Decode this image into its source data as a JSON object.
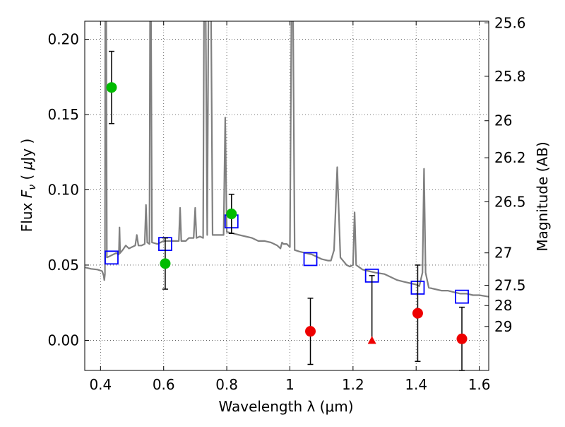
{
  "chart_data": {
    "type": "scatter",
    "xlabel": "Wavelength  λ (μm)",
    "ylabel_left": [
      "Flux ",
      "F",
      "ν",
      " ( ",
      "μ",
      "Jy )"
    ],
    "ylabel_right": "Magnitude (AB)",
    "xlim": [
      0.35,
      1.63
    ],
    "ylim": [
      -0.02,
      0.212
    ],
    "grid": true,
    "x_ticks": [
      0.4,
      0.6,
      0.8,
      1.0,
      1.2,
      1.4,
      1.6
    ],
    "x_tick_labels": [
      "0.4",
      "0.6",
      "0.8",
      "1",
      "1.2",
      "1.4",
      "1.6"
    ],
    "y_ticks": [
      0.0,
      0.05,
      0.1,
      0.15,
      0.2
    ],
    "y_tick_labels": [
      "0.00",
      "0.05",
      "0.10",
      "0.15",
      "0.20"
    ],
    "mag_ticks": [
      {
        "label": "25.6",
        "flux": 0.2109
      },
      {
        "label": "25.8",
        "flux": 0.1754
      },
      {
        "label": "26",
        "flux": 0.1459
      },
      {
        "label": "26.2",
        "flux": 0.1213
      },
      {
        "label": "26.5",
        "flux": 0.092
      },
      {
        "label": "27",
        "flux": 0.0581
      },
      {
        "label": "27.5",
        "flux": 0.0366
      },
      {
        "label": "28",
        "flux": 0.0231
      },
      {
        "label": "29",
        "flux": 0.0092
      }
    ],
    "series": [
      {
        "type": "line",
        "color": "#808080",
        "points": [
          [
            0.35,
            0.0485
          ],
          [
            0.37,
            0.0475
          ],
          [
            0.39,
            0.047
          ],
          [
            0.405,
            0.046
          ],
          [
            0.41,
            0.043
          ],
          [
            0.412,
            0.04
          ],
          [
            0.414,
            0.044
          ],
          [
            0.415,
            0.22
          ],
          [
            0.418,
            0.22
          ],
          [
            0.42,
            0.055
          ],
          [
            0.43,
            0.056
          ],
          [
            0.44,
            0.057
          ],
          [
            0.45,
            0.058
          ],
          [
            0.458,
            0.057
          ],
          [
            0.46,
            0.075
          ],
          [
            0.462,
            0.058
          ],
          [
            0.47,
            0.06
          ],
          [
            0.48,
            0.063
          ],
          [
            0.49,
            0.061
          ],
          [
            0.5,
            0.062
          ],
          [
            0.51,
            0.063
          ],
          [
            0.515,
            0.07
          ],
          [
            0.52,
            0.063
          ],
          [
            0.53,
            0.063
          ],
          [
            0.54,
            0.064
          ],
          [
            0.544,
            0.09
          ],
          [
            0.548,
            0.065
          ],
          [
            0.555,
            0.064
          ],
          [
            0.557,
            0.22
          ],
          [
            0.56,
            0.22
          ],
          [
            0.563,
            0.065
          ],
          [
            0.58,
            0.064
          ],
          [
            0.6,
            0.066
          ],
          [
            0.62,
            0.066
          ],
          [
            0.64,
            0.066
          ],
          [
            0.648,
            0.066
          ],
          [
            0.652,
            0.088
          ],
          [
            0.656,
            0.066
          ],
          [
            0.67,
            0.066
          ],
          [
            0.68,
            0.068
          ],
          [
            0.695,
            0.068
          ],
          [
            0.7,
            0.088
          ],
          [
            0.704,
            0.068
          ],
          [
            0.715,
            0.069
          ],
          [
            0.725,
            0.068
          ],
          [
            0.728,
            0.22
          ],
          [
            0.733,
            0.22
          ],
          [
            0.738,
            0.07
          ],
          [
            0.742,
            0.22
          ],
          [
            0.75,
            0.22
          ],
          [
            0.755,
            0.07
          ],
          [
            0.77,
            0.07
          ],
          [
            0.78,
            0.07
          ],
          [
            0.79,
            0.07
          ],
          [
            0.795,
            0.148
          ],
          [
            0.8,
            0.072
          ],
          [
            0.82,
            0.071
          ],
          [
            0.84,
            0.07
          ],
          [
            0.86,
            0.069
          ],
          [
            0.88,
            0.068
          ],
          [
            0.9,
            0.066
          ],
          [
            0.92,
            0.066
          ],
          [
            0.94,
            0.065
          ],
          [
            0.96,
            0.063
          ],
          [
            0.97,
            0.061
          ],
          [
            0.975,
            0.065
          ],
          [
            0.98,
            0.064
          ],
          [
            0.99,
            0.064
          ],
          [
            1.0,
            0.062
          ],
          [
            1.005,
            0.22
          ],
          [
            1.01,
            0.22
          ],
          [
            1.015,
            0.06
          ],
          [
            1.03,
            0.059
          ],
          [
            1.05,
            0.058
          ],
          [
            1.07,
            0.057
          ],
          [
            1.09,
            0.055
          ],
          [
            1.1,
            0.054
          ],
          [
            1.12,
            0.053
          ],
          [
            1.13,
            0.053
          ],
          [
            1.14,
            0.06
          ],
          [
            1.15,
            0.115
          ],
          [
            1.16,
            0.055
          ],
          [
            1.18,
            0.05
          ],
          [
            1.19,
            0.049
          ],
          [
            1.2,
            0.05
          ],
          [
            1.205,
            0.085
          ],
          [
            1.21,
            0.05
          ],
          [
            1.23,
            0.047
          ],
          [
            1.25,
            0.046
          ],
          [
            1.27,
            0.045
          ],
          [
            1.3,
            0.044
          ],
          [
            1.32,
            0.042
          ],
          [
            1.34,
            0.04
          ],
          [
            1.36,
            0.039
          ],
          [
            1.38,
            0.038
          ],
          [
            1.4,
            0.037
          ],
          [
            1.41,
            0.036
          ],
          [
            1.42,
            0.045
          ],
          [
            1.425,
            0.114
          ],
          [
            1.43,
            0.045
          ],
          [
            1.44,
            0.035
          ],
          [
            1.46,
            0.034
          ],
          [
            1.48,
            0.033
          ],
          [
            1.5,
            0.033
          ],
          [
            1.52,
            0.032
          ],
          [
            1.54,
            0.031
          ],
          [
            1.56,
            0.031
          ],
          [
            1.58,
            0.03
          ],
          [
            1.6,
            0.03
          ],
          [
            1.63,
            0.029
          ]
        ]
      },
      {
        "type": "model_squares",
        "color": "#0000ff",
        "points": [
          [
            0.435,
            0.055
          ],
          [
            0.605,
            0.064
          ],
          [
            0.815,
            0.079
          ],
          [
            1.065,
            0.054
          ],
          [
            1.26,
            0.043
          ],
          [
            1.405,
            0.035
          ],
          [
            1.545,
            0.029
          ]
        ]
      },
      {
        "type": "detections",
        "color": "#00bb00",
        "points": [
          [
            0.435,
            0.168,
            0.024
          ],
          [
            0.605,
            0.051,
            0.017
          ],
          [
            0.815,
            0.084,
            0.013
          ]
        ]
      },
      {
        "type": "nondetections",
        "color": "#ee0000",
        "points": [
          [
            1.065,
            0.006,
            0.022
          ],
          [
            1.405,
            0.018,
            0.032
          ],
          [
            1.545,
            0.001,
            0.021
          ]
        ]
      },
      {
        "type": "upper_limit",
        "color": "#ee0000",
        "points": [
          [
            1.26,
            0.0,
            0.043
          ]
        ]
      }
    ]
  }
}
